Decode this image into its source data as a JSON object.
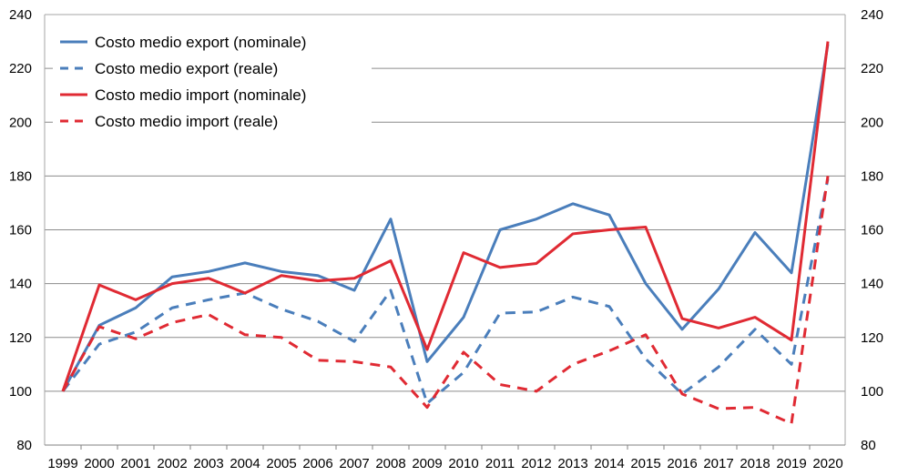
{
  "chart_data": {
    "type": "line",
    "x": [
      "1999",
      "2000",
      "2001",
      "2002",
      "2003",
      "2004",
      "2005",
      "2006",
      "2007",
      "2008",
      "2009",
      "2010",
      "2011",
      "2012",
      "2013",
      "2014",
      "2015",
      "2016",
      "2017",
      "2018",
      "2019",
      "2020"
    ],
    "ylim": [
      80,
      240
    ],
    "y_ticks": [
      80,
      100,
      120,
      140,
      160,
      180,
      200,
      220,
      240
    ],
    "secondary_y_ticks": [
      80,
      100,
      120,
      140,
      160,
      180,
      200,
      220,
      240
    ],
    "grid": "horizontal",
    "legend_position": "top-left",
    "series": [
      {
        "name": "Costo medio export (nominale)",
        "color": "#4A7EBB",
        "dash": "solid",
        "values": [
          100,
          124.5,
          131,
          142.5,
          144.5,
          147.7,
          144.5,
          143,
          137.5,
          164,
          111,
          127.5,
          160,
          164,
          169.7,
          165.5,
          140,
          123,
          138,
          159,
          144,
          229
        ]
      },
      {
        "name": "Costo medio export (reale)",
        "color": "#4A7EBB",
        "dash": "dashed",
        "values": [
          100,
          117.5,
          122,
          131,
          134,
          136.5,
          130.5,
          126,
          118.5,
          137.5,
          95.5,
          107,
          129,
          129.5,
          135,
          131.5,
          112,
          99,
          109,
          123,
          110,
          179
        ]
      },
      {
        "name": "Costo medio import (nominale)",
        "color": "#E02A33",
        "dash": "solid",
        "values": [
          100,
          139.5,
          134,
          140,
          142,
          136.5,
          143,
          141,
          142,
          148.5,
          115.5,
          151.5,
          146,
          147.5,
          158.5,
          160,
          161,
          127,
          123.5,
          127.5,
          119,
          230
        ]
      },
      {
        "name": "Costo medio import (reale)",
        "color": "#E02A33",
        "dash": "dashed",
        "values": [
          100,
          124,
          119.5,
          125.5,
          128.5,
          121,
          120,
          111.5,
          111,
          109,
          94,
          114.5,
          102.5,
          100,
          110,
          115,
          121,
          99,
          93.5,
          94,
          88,
          180
        ]
      }
    ]
  }
}
